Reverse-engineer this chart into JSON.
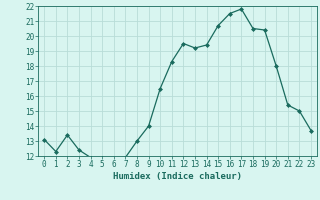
{
  "x": [
    0,
    1,
    2,
    3,
    4,
    5,
    6,
    7,
    8,
    9,
    10,
    11,
    12,
    13,
    14,
    15,
    16,
    17,
    18,
    19,
    20,
    21,
    22,
    23
  ],
  "y": [
    13.1,
    12.3,
    13.4,
    12.4,
    11.9,
    11.9,
    11.8,
    11.9,
    13.0,
    14.0,
    16.5,
    18.3,
    19.5,
    19.2,
    19.4,
    20.7,
    21.5,
    21.8,
    20.5,
    20.4,
    18.0,
    15.4,
    15.0,
    13.7
  ],
  "line_color": "#1a6b5e",
  "marker": "D",
  "marker_size": 2.0,
  "bg_color": "#d8f5f0",
  "grid_color": "#b8ddd8",
  "xlabel": "Humidex (Indice chaleur)",
  "ylim": [
    12,
    22
  ],
  "xlim": [
    -0.5,
    23.5
  ],
  "yticks": [
    12,
    13,
    14,
    15,
    16,
    17,
    18,
    19,
    20,
    21,
    22
  ],
  "xticks": [
    0,
    1,
    2,
    3,
    4,
    5,
    6,
    7,
    8,
    9,
    10,
    11,
    12,
    13,
    14,
    15,
    16,
    17,
    18,
    19,
    20,
    21,
    22,
    23
  ],
  "tick_color": "#1a6b5e",
  "label_fontsize": 6.5,
  "tick_fontsize": 5.5
}
